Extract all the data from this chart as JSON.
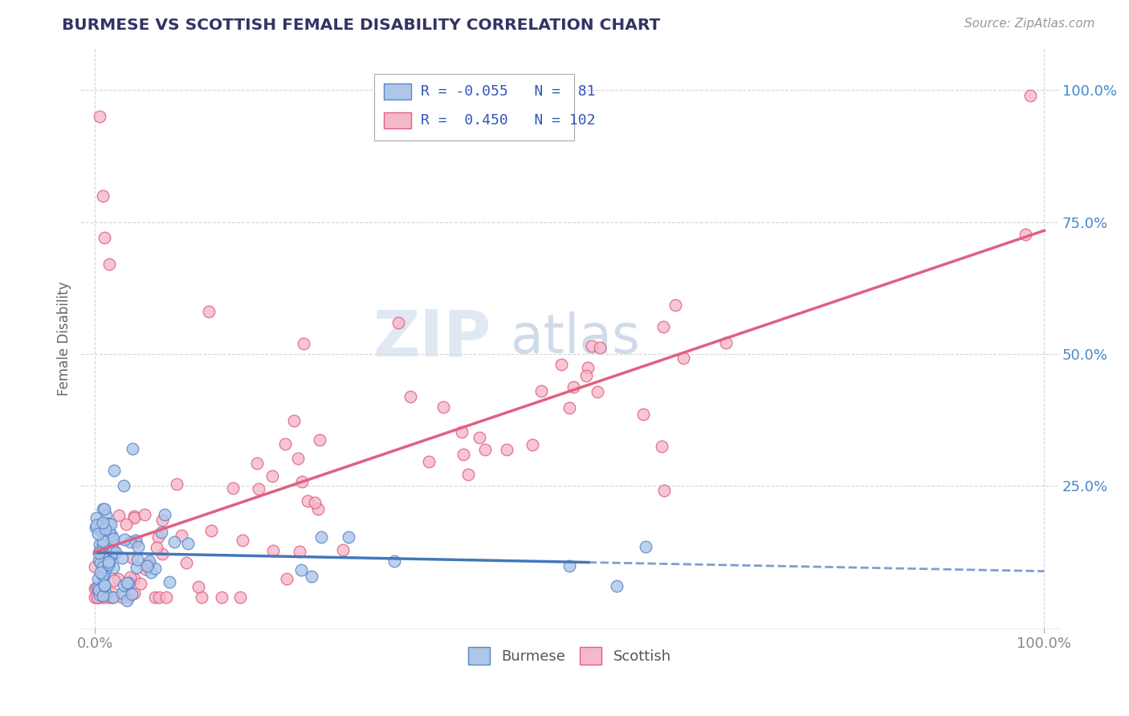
{
  "title": "BURMESE VS SCOTTISH FEMALE DISABILITY CORRELATION CHART",
  "source": "Source: ZipAtlas.com",
  "ylabel": "Female Disability",
  "burmese_color": "#aec6e8",
  "scottish_color": "#f5b8cb",
  "burmese_edge": "#5588cc",
  "scottish_edge": "#e06080",
  "burmese_line_color": "#4477bb",
  "scottish_line_color": "#e06080",
  "grid_color": "#cccccc",
  "background_color": "#ffffff",
  "R_burmese": -0.055,
  "N_burmese": 81,
  "R_scottish": 0.45,
  "N_scottish": 102,
  "watermark_zip": "ZIP",
  "watermark_atlas": "atlas",
  "watermark_color_zip": "#c8d8ea",
  "watermark_color_atlas": "#a8bdd8",
  "ytick_color": "#4488cc",
  "xtick_color": "#888888",
  "title_color": "#333366",
  "source_color": "#999999",
  "legend_text_color": "#3355bb"
}
